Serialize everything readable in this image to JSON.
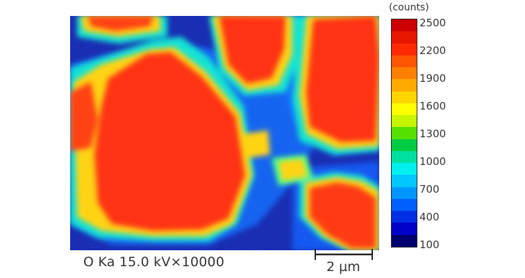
{
  "map": {
    "element": "O Ka",
    "description_caption": "O Ka 15.0 kV×10000"
  },
  "colorbar": {
    "unit": "(counts)",
    "ticks": [
      "2500",
      "2200",
      "1900",
      "1600",
      "1300",
      "1000",
      "700",
      "400",
      "100"
    ],
    "colors": [
      "#cc0000",
      "#e81500",
      "#ff2a00",
      "#ff5500",
      "#ff8000",
      "#ffaa00",
      "#ffd500",
      "#ffff00",
      "#c8f500",
      "#55e000",
      "#00cc44",
      "#00e0a0",
      "#00f0f0",
      "#00c8ff",
      "#0096ff",
      "#0060ff",
      "#0030e6",
      "#0000c8",
      "#00006e"
    ]
  },
  "scalebar": {
    "label": "2 µm"
  }
}
